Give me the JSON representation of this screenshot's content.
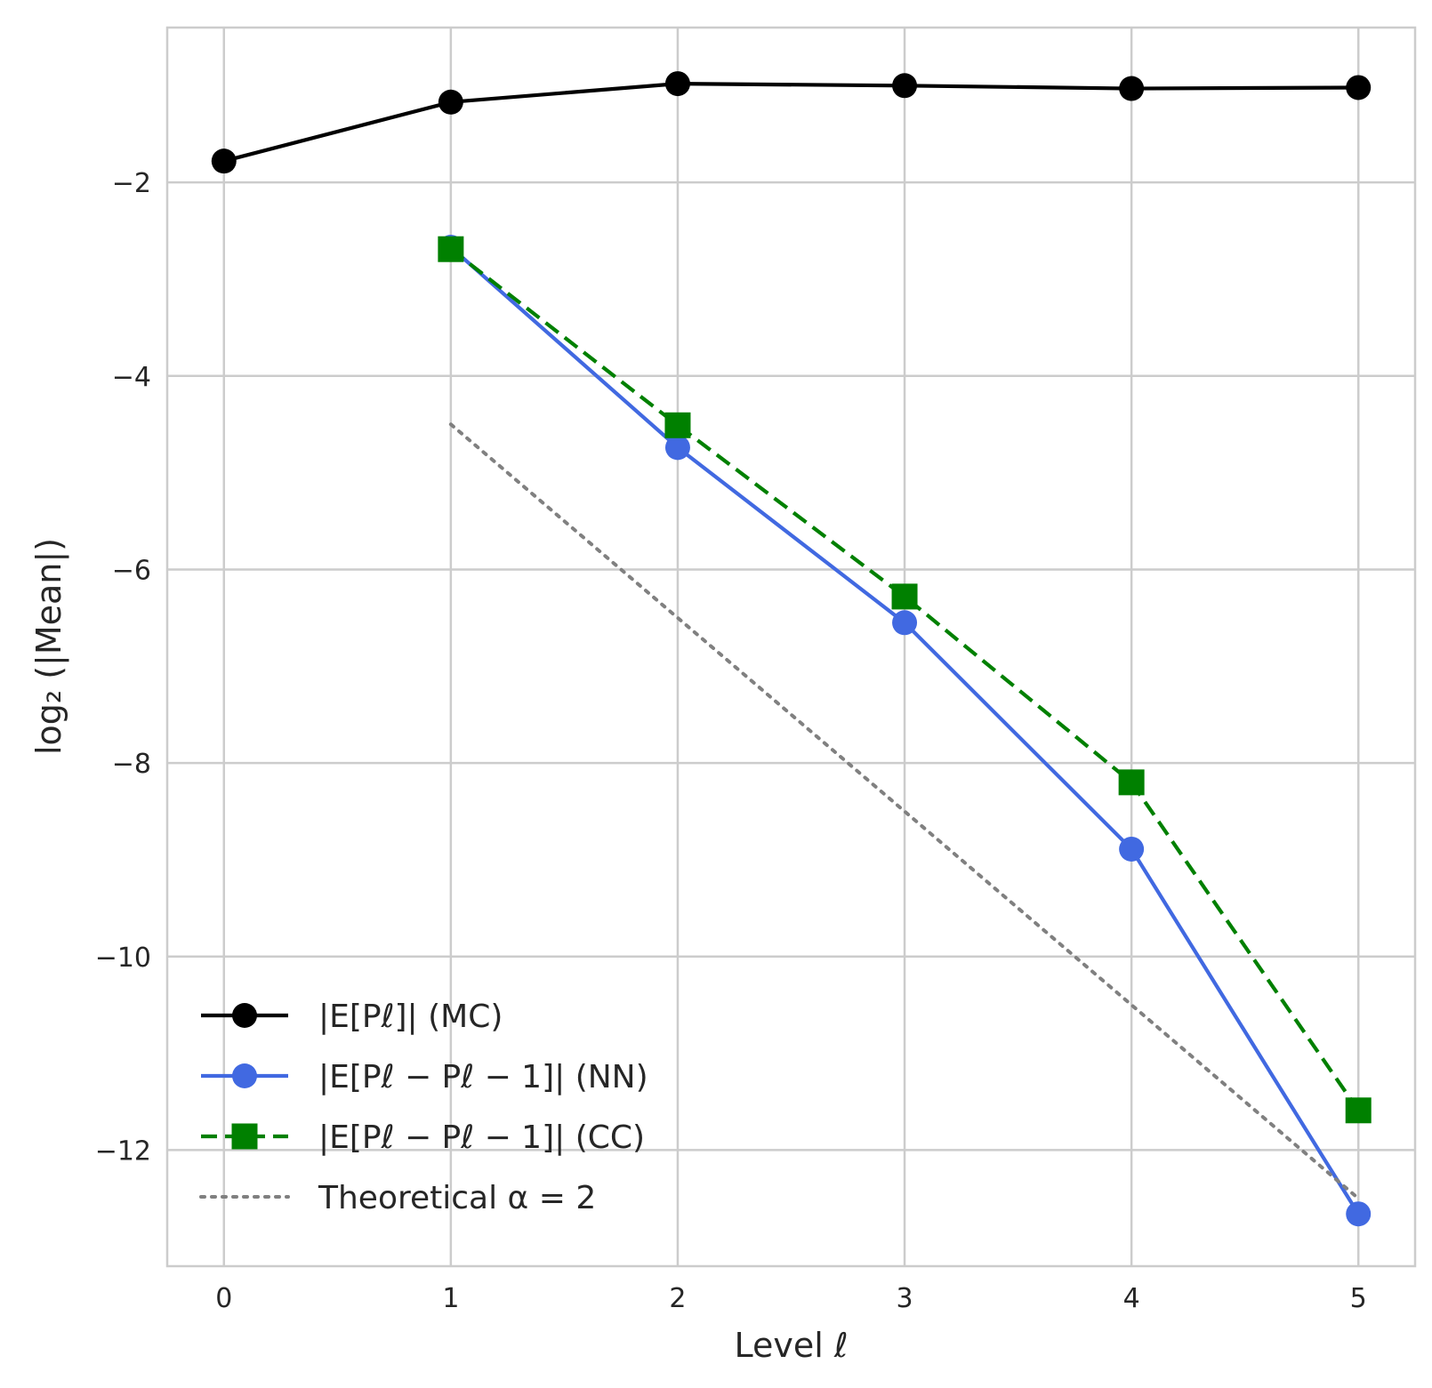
{
  "chart_data": {
    "type": "line",
    "xlabel": "Level ℓ",
    "ylabel": "log₂ (|Mean|)",
    "x": [
      0,
      1,
      2,
      3,
      4,
      5
    ],
    "xticks": [
      "0",
      "1",
      "2",
      "3",
      "4",
      "5"
    ],
    "yticks": [
      "−2",
      "−4",
      "−6",
      "−8",
      "−10",
      "−12"
    ],
    "ytick_values": [
      -2,
      -4,
      -6,
      -8,
      -10,
      -12
    ],
    "xlim": [
      -0.25,
      5.25
    ],
    "ylim": [
      -13.2,
      -0.4
    ],
    "grid": true,
    "legend_position": "lower-left",
    "series": [
      {
        "name": "|E[Pℓ]| (MC)",
        "x": [
          0,
          1,
          2,
          3,
          4,
          5
        ],
        "values": [
          -1.78,
          -1.17,
          -0.98,
          -1.0,
          -1.03,
          -1.02
        ],
        "color": "#000000",
        "linestyle": "solid",
        "marker": "circle"
      },
      {
        "name": "|E[Pℓ − Pℓ − 1]| (NN)",
        "x": [
          1,
          2,
          3,
          4,
          5
        ],
        "values": [
          -2.67,
          -4.74,
          -6.55,
          -8.89,
          -12.66
        ],
        "color": "#4169e1",
        "linestyle": "solid",
        "marker": "circle"
      },
      {
        "name": "|E[Pℓ − Pℓ − 1]| (CC)",
        "x": [
          1,
          2,
          3,
          4,
          5
        ],
        "values": [
          -2.69,
          -4.51,
          -6.28,
          -8.2,
          -11.59
        ],
        "color": "#008000",
        "linestyle": "dashed",
        "marker": "square"
      },
      {
        "name": "Theoretical α = 2",
        "x": [
          1,
          5
        ],
        "values": [
          -4.5,
          -12.5
        ],
        "color": "#808080",
        "linestyle": "dotted",
        "marker": "none"
      }
    ]
  }
}
